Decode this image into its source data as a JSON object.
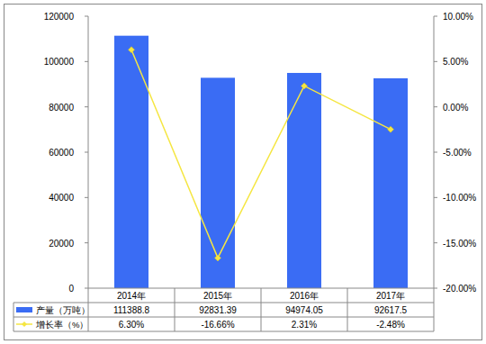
{
  "chart_data": {
    "type": "bar",
    "categories": [
      "2014年",
      "2015年",
      "2016年",
      "2017年"
    ],
    "series": [
      {
        "name": "产量（万吨）",
        "type": "bar",
        "color": "#3a6cf4",
        "values": [
          111388.8,
          92831.39,
          94974.05,
          92617.5
        ]
      },
      {
        "name": "增长率（%）",
        "type": "line",
        "axis": "y2",
        "color": "#f5e642",
        "marker": "diamond",
        "values": [
          6.3,
          -16.66,
          2.31,
          -2.48
        ],
        "value_labels": [
          "6.30%",
          "-16.66%",
          "2.31%",
          "-2.48%"
        ]
      }
    ],
    "ylim": [
      0,
      120000
    ],
    "yticks": [
      0,
      20000,
      40000,
      60000,
      80000,
      100000,
      120000
    ],
    "y2lim": [
      -20,
      10
    ],
    "y2ticks": [
      {
        "value": -20,
        "label": "-20.00%"
      },
      {
        "value": -15,
        "label": "-15.00%"
      },
      {
        "value": -10,
        "label": "-10.00%"
      },
      {
        "value": -5,
        "label": "-5.00%"
      },
      {
        "value": 0,
        "label": "0.00%"
      },
      {
        "value": 5,
        "label": "5.00%"
      },
      {
        "value": 10,
        "label": "10.00%"
      }
    ],
    "grid": false
  }
}
